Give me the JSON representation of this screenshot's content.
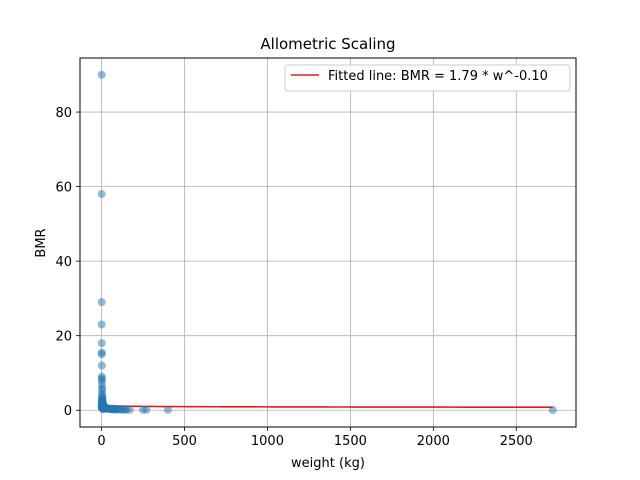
{
  "chart_data": {
    "type": "scatter",
    "title": "Allometric Scaling",
    "xlabel": "weight (kg)",
    "ylabel": "BMR",
    "xlim": [
      -130,
      2860
    ],
    "ylim": [
      -4.5,
      94.5
    ],
    "xticks": [
      0,
      500,
      1000,
      1500,
      2000,
      2500
    ],
    "yticks": [
      0,
      20,
      40,
      60,
      80
    ],
    "grid": true,
    "legend_position": "top-right",
    "colors": {
      "points": "#1f77b4",
      "fit_line": "#e31a1c"
    },
    "series": [
      {
        "kind": "points",
        "x": [
          0.5,
          0.6,
          0.7,
          0.8,
          1,
          1,
          1.2,
          1.5,
          1.6,
          2,
          2,
          2.5,
          3,
          3,
          3.5,
          4,
          4.5,
          5,
          5,
          6,
          6,
          7,
          8,
          9,
          10,
          11,
          12,
          13,
          14,
          15,
          16,
          18,
          20,
          22,
          25,
          28,
          30,
          33,
          36,
          40,
          45,
          50,
          55,
          60,
          65,
          70,
          75,
          80,
          85,
          90,
          100,
          110,
          120,
          130,
          140,
          150,
          170,
          250,
          270,
          400,
          2720,
          0.5,
          0.6,
          0.8,
          1.0,
          1.2,
          1.5,
          2.0,
          2.5,
          3.0,
          4.0,
          5.0,
          6.0,
          7.0,
          8.0,
          10.0,
          12.0,
          15.0
        ],
        "y": [
          90,
          58,
          29,
          23,
          18,
          15.5,
          15,
          12,
          9,
          8.5,
          8,
          7,
          6,
          5.5,
          4.5,
          4,
          3.5,
          3,
          2.8,
          2.5,
          2.2,
          2,
          1.8,
          1.6,
          1.4,
          1.3,
          1.2,
          1.1,
          1,
          0.9,
          0.85,
          0.8,
          0.75,
          0.7,
          0.65,
          0.6,
          0.55,
          0.5,
          0.45,
          0.4,
          0.38,
          0.35,
          0.33,
          0.3,
          0.28,
          0.26,
          0.25,
          0.24,
          0.23,
          0.22,
          0.2,
          0.19,
          0.18,
          0.17,
          0.16,
          0.15,
          0.14,
          0.12,
          0.11,
          0.1,
          0.05,
          1.5,
          1.0,
          2.2,
          0.8,
          1.7,
          3.2,
          0.6,
          2.6,
          1.9,
          0.5,
          1.1,
          0.9,
          0.4,
          0.7,
          0.3,
          0.45,
          0.35
        ]
      },
      {
        "kind": "line",
        "name": "Fitted line: BMR = 1.79 * w^-0.10",
        "a": 1.79,
        "b": -0.1,
        "x_range": [
          0.5,
          2720
        ]
      }
    ]
  }
}
